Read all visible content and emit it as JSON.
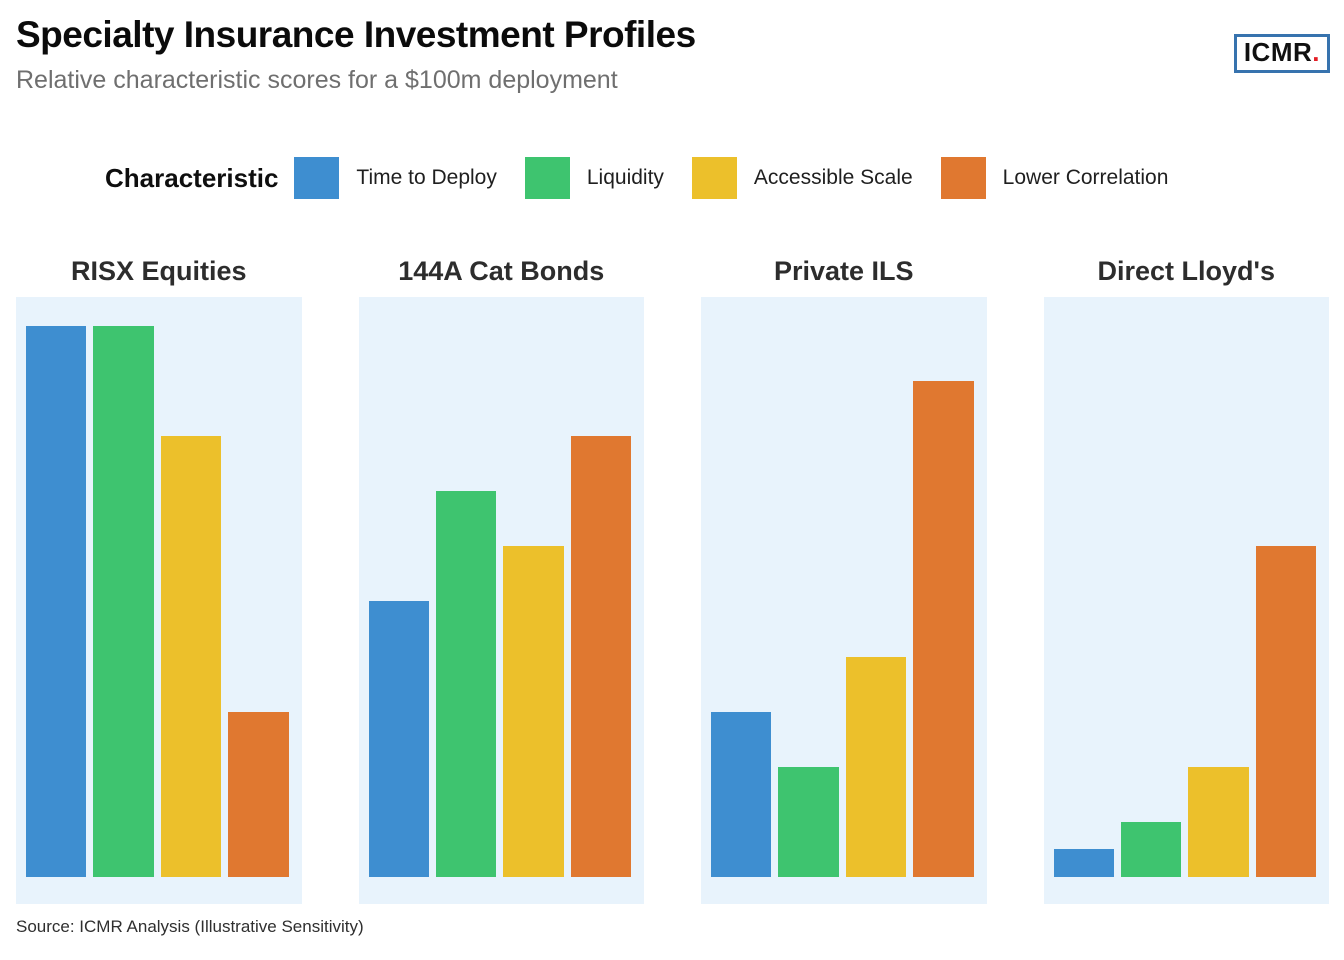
{
  "header": {
    "title": "Specialty Insurance Investment Profiles",
    "subtitle": "Relative characteristic scores for a $100m deployment",
    "logo": {
      "text": "ICMR",
      "dot": ".",
      "border_color": "#3773ae",
      "dot_color": "#e41e26",
      "text_color": "#101010"
    }
  },
  "source_note": "Source: ICMR Analysis (Illustrative Sensitivity)",
  "chart_data": {
    "type": "bar",
    "layout": "four small-multiple panels, vertical bars, shared hidden y-scale, no gridlines, no axis ticks",
    "title": "Specialty Insurance Investment Profiles",
    "subtitle": "Relative characteristic scores for a $100m deployment",
    "legend_title": "Characteristic",
    "legend_position": "top",
    "ylim": [
      0,
      10.5
    ],
    "grid": false,
    "panel_background": "#e8f3fc",
    "series": [
      {
        "name": "Time to Deploy",
        "color": "#3e8ed0"
      },
      {
        "name": "Liquidity",
        "color": "#3ec46f"
      },
      {
        "name": "Accessible Scale",
        "color": "#ecc02b"
      },
      {
        "name": "Lower Correlation",
        "color": "#e07830"
      }
    ],
    "panels": [
      {
        "title": "RISX Equities",
        "values": [
          10,
          10,
          8,
          3
        ]
      },
      {
        "title": "144A Cat Bonds",
        "values": [
          5,
          7,
          6,
          8
        ]
      },
      {
        "title": "Private ILS",
        "values": [
          3,
          2,
          4,
          9
        ]
      },
      {
        "title": "Direct Lloyd's",
        "values": [
          0.5,
          1,
          2,
          6
        ]
      }
    ]
  }
}
